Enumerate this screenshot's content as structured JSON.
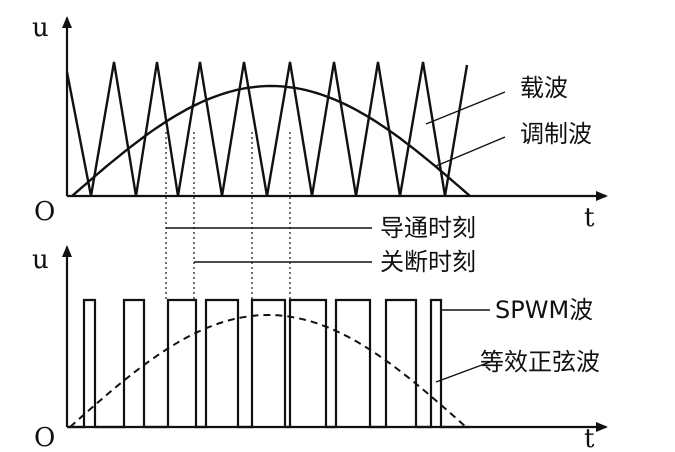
{
  "top_panel": {
    "y_axis_label": "u",
    "x_axis_label": "t",
    "origin_label": "O",
    "curve_labels": {
      "carrier": "载波",
      "modulating": "调制波"
    }
  },
  "mid_labels": {
    "turn_on": "导通时刻",
    "turn_off": "关断时刻"
  },
  "bottom_panel": {
    "y_axis_label": "u",
    "x_axis_label": "t",
    "origin_label": "O",
    "curve_labels": {
      "spwm": "SPWM波",
      "equivalent_sine": "等效正弦波"
    }
  },
  "colors": {
    "ink": "#111111",
    "background": "#ffffff"
  }
}
